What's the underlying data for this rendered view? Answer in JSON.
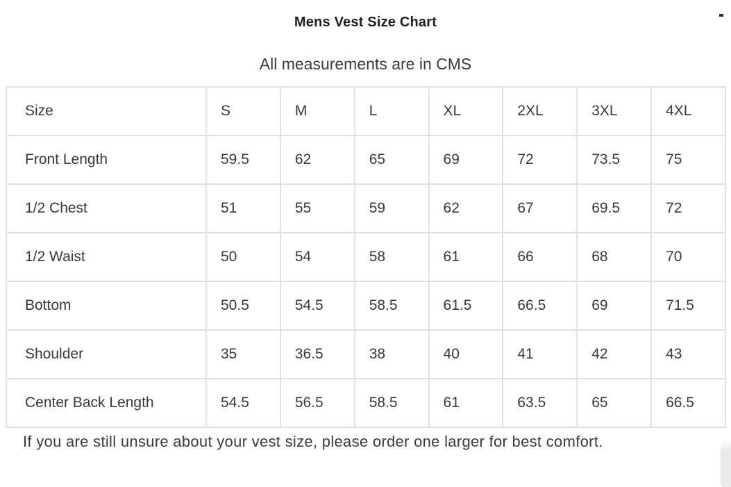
{
  "chart_data": {
    "type": "table",
    "title": "Mens Vest Size Chart",
    "subtitle": "All measurements are in CMS",
    "columns": [
      "Size",
      "S",
      "M",
      "L",
      "XL",
      "2XL",
      "3XL",
      "4XL"
    ],
    "rows": [
      {
        "label": "Front Length",
        "values": [
          "59.5",
          "62",
          "65",
          "69",
          "72",
          "73.5",
          "75"
        ]
      },
      {
        "label": "1/2 Chest",
        "values": [
          "51",
          "55",
          "59",
          "62",
          "67",
          "69.5",
          "72"
        ]
      },
      {
        "label": "1/2 Waist",
        "values": [
          "50",
          "54",
          "58",
          "61",
          "66",
          "68",
          "70"
        ]
      },
      {
        "label": "Bottom",
        "values": [
          "50.5",
          "54.5",
          "58.5",
          "61.5",
          "66.5",
          "69",
          "71.5"
        ]
      },
      {
        "label": "Shoulder",
        "values": [
          "35",
          "36.5",
          "38",
          "40",
          "41",
          "42",
          "43"
        ]
      },
      {
        "label": "Center Back Length",
        "values": [
          "54.5",
          "56.5",
          "58.5",
          "61",
          "63.5",
          "65",
          "66.5"
        ]
      }
    ],
    "footer_note": "If you are still unsure about your vest size, please order one larger for best comfort.",
    "layout_hints": {
      "grid": "full-borders",
      "header_position": "top-row",
      "units": "CMS"
    }
  },
  "colors": {
    "text": "#383838",
    "title": "#1f1f1f",
    "border": "#e0e0e0",
    "page_curl": "#e9e9e9"
  }
}
